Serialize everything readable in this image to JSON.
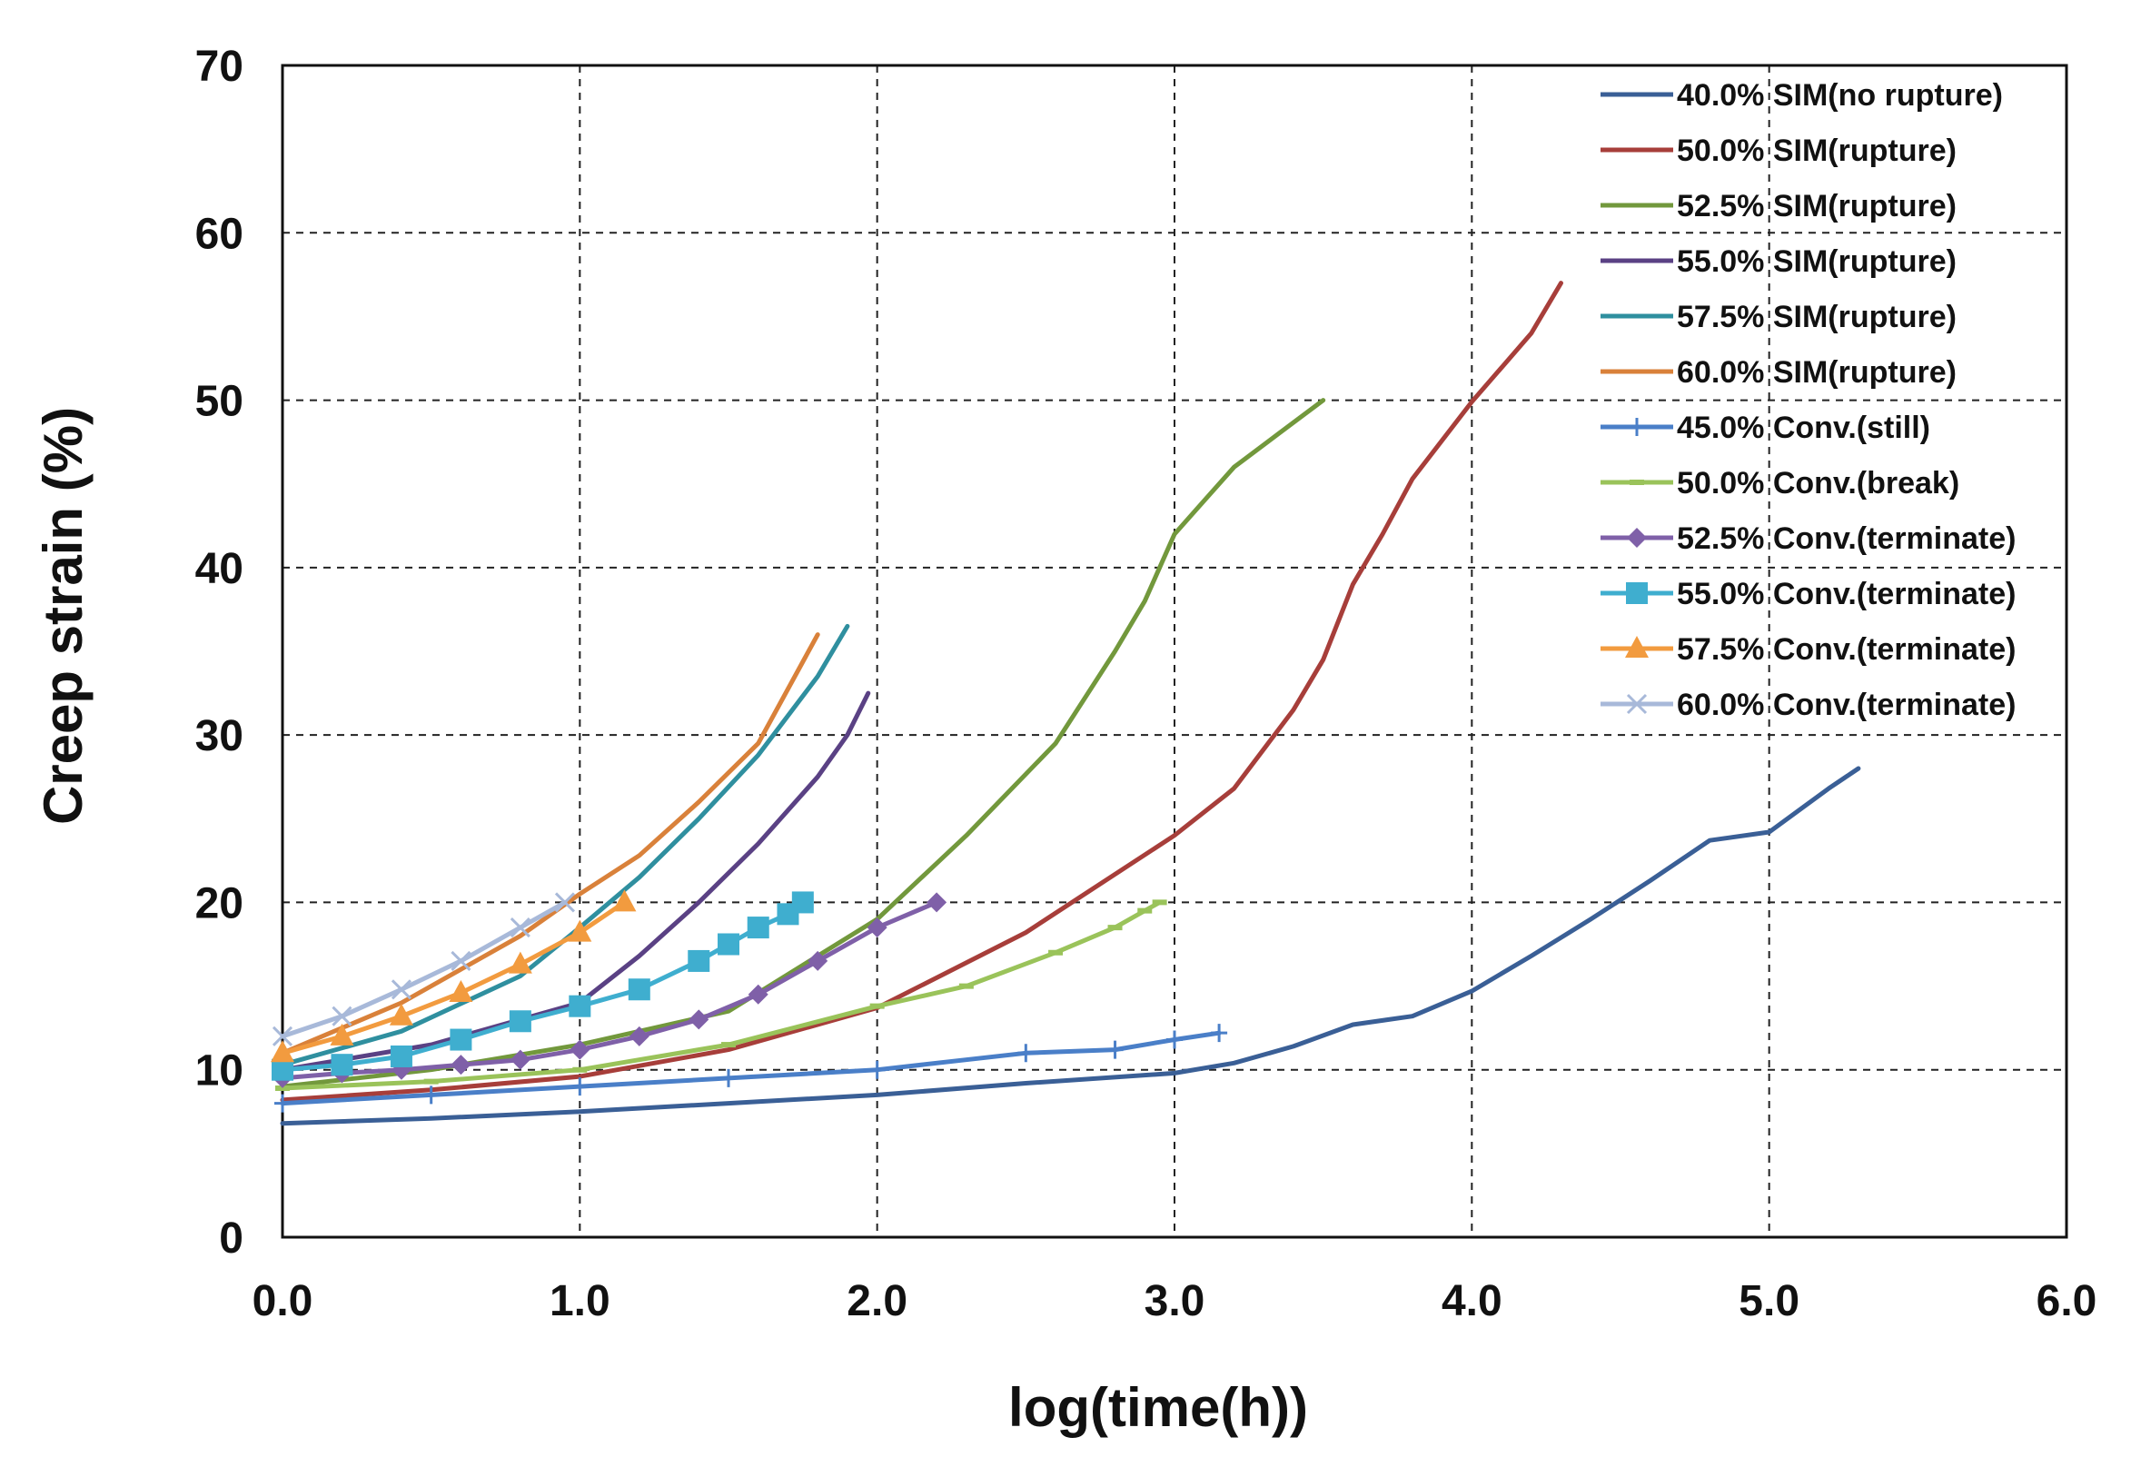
{
  "chart_data": {
    "type": "line",
    "title": "",
    "xlabel": "log(time(h))",
    "ylabel": "Creep strain (%)",
    "xlim": [
      0,
      6
    ],
    "ylim": [
      0,
      70
    ],
    "xticks": [
      "0.0",
      "1.0",
      "2.0",
      "3.0",
      "4.0",
      "5.0",
      "6.0"
    ],
    "yticks": [
      "0",
      "10",
      "20",
      "30",
      "40",
      "50",
      "60",
      "70"
    ],
    "grid": true,
    "legend_position": "top-right",
    "series": [
      {
        "name": "40.0% SIM(no rupture)",
        "color": "#3a5f96",
        "marker": "none",
        "x": [
          0,
          0.5,
          1,
          1.5,
          2,
          2.5,
          3,
          3.2,
          3.4,
          3.6,
          3.8,
          4,
          4.2,
          4.4,
          4.6,
          4.8,
          5,
          5.2,
          5.3
        ],
        "y": [
          6.8,
          7.1,
          7.5,
          8,
          8.5,
          9.2,
          9.8,
          10.4,
          11.4,
          12.7,
          13.2,
          14.7,
          16.8,
          19,
          21.3,
          23.7,
          24.2,
          26.8,
          28
        ]
      },
      {
        "name": "50.0% SIM(rupture)",
        "color": "#a73e3a",
        "marker": "none",
        "x": [
          0,
          0.5,
          1,
          1.5,
          2,
          2.5,
          3,
          3.2,
          3.4,
          3.5,
          3.6,
          3.7,
          3.8,
          4,
          4.2,
          4.3
        ],
        "y": [
          8.2,
          8.8,
          9.6,
          11.2,
          13.7,
          18.2,
          24,
          26.8,
          31.5,
          34.5,
          39,
          42,
          45.3,
          49.9,
          54,
          57
        ]
      },
      {
        "name": "52.5% SIM(rupture)",
        "color": "#72983c",
        "marker": "none",
        "x": [
          0,
          0.5,
          1,
          1.5,
          2,
          2.3,
          2.6,
          2.8,
          2.9,
          3,
          3.1,
          3.2,
          3.35,
          3.5
        ],
        "y": [
          9,
          10,
          11.5,
          13.5,
          19,
          24,
          29.5,
          35,
          38,
          42,
          44,
          46,
          48,
          50
        ]
      },
      {
        "name": "55.0% SIM(rupture)",
        "color": "#5a4184",
        "marker": "none",
        "x": [
          0,
          0.5,
          1,
          1.2,
          1.4,
          1.6,
          1.8,
          1.9,
          1.97
        ],
        "y": [
          10,
          11.5,
          14,
          16.8,
          20,
          23.5,
          27.5,
          30,
          32.5
        ]
      },
      {
        "name": "57.5% SIM(rupture)",
        "color": "#2f8f9f",
        "marker": "none",
        "x": [
          0,
          0.4,
          0.8,
          1,
          1.2,
          1.4,
          1.6,
          1.8,
          1.9
        ],
        "y": [
          10.3,
          12.3,
          15.6,
          18.5,
          21.5,
          25,
          28.8,
          33.5,
          36.5
        ]
      },
      {
        "name": "60.0% SIM(rupture)",
        "color": "#d9813a",
        "marker": "none",
        "x": [
          0,
          0.4,
          0.8,
          1,
          1.2,
          1.4,
          1.6,
          1.8
        ],
        "y": [
          11,
          14,
          18,
          20.5,
          22.8,
          26,
          29.5,
          36
        ]
      },
      {
        "name": "45.0% Conv.(still)",
        "color": "#4a7fc8",
        "marker": "plus",
        "x": [
          0,
          0.5,
          1,
          1.5,
          2,
          2.5,
          2.8,
          3,
          3.15
        ],
        "y": [
          8,
          8.5,
          9,
          9.5,
          10,
          11,
          11.2,
          11.8,
          12.2
        ]
      },
      {
        "name": "50.0% Conv.(break)",
        "color": "#9ac35a",
        "marker": "dash",
        "x": [
          0,
          0.5,
          1,
          1.5,
          2,
          2.3,
          2.6,
          2.8,
          2.9,
          2.95
        ],
        "y": [
          8.9,
          9.3,
          10,
          11.5,
          13.8,
          15,
          17,
          18.5,
          19.5,
          20
        ]
      },
      {
        "name": "52.5% Conv.(terminate)",
        "color": "#7f60a8",
        "marker": "diamond",
        "x": [
          0,
          0.2,
          0.4,
          0.6,
          0.8,
          1,
          1.2,
          1.4,
          1.6,
          1.8,
          2,
          2.2
        ],
        "y": [
          9.5,
          9.8,
          10,
          10.3,
          10.6,
          11.2,
          12,
          13,
          14.5,
          16.5,
          18.5,
          20
        ]
      },
      {
        "name": "55.0% Conv.(terminate)",
        "color": "#3faecf",
        "marker": "square",
        "x": [
          0,
          0.2,
          0.4,
          0.6,
          0.8,
          1,
          1.2,
          1.4,
          1.5,
          1.6,
          1.7,
          1.75
        ],
        "y": [
          10,
          10.3,
          10.8,
          11.8,
          12.9,
          13.8,
          14.8,
          16.5,
          17.5,
          18.5,
          19.3,
          20
        ]
      },
      {
        "name": "57.5% Conv.(terminate)",
        "color": "#f29b3f",
        "marker": "triangle",
        "x": [
          0,
          0.2,
          0.4,
          0.6,
          0.8,
          1,
          1.15
        ],
        "y": [
          11,
          12,
          13.2,
          14.6,
          16.3,
          18.2,
          20
        ]
      },
      {
        "name": "60.0% Conv.(terminate)",
        "color": "#a8b9d9",
        "marker": "x",
        "x": [
          0,
          0.2,
          0.4,
          0.6,
          0.8,
          0.95
        ],
        "y": [
          12,
          13.2,
          14.8,
          16.5,
          18.5,
          20
        ]
      }
    ]
  }
}
